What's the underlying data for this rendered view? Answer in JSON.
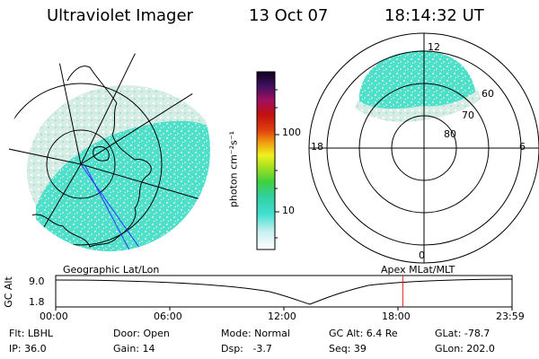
{
  "header": {
    "instrument": "Ultraviolet Imager",
    "date": "13 Oct 07",
    "time": "18:14:32 UT"
  },
  "colorbar": {
    "label": "photon cm⁻²s⁻¹",
    "ticks": [
      "100",
      "10"
    ]
  },
  "polar_plot": {
    "mlt_labels": [
      "12",
      "18",
      "6",
      "0"
    ],
    "lat_labels": [
      "60",
      "70",
      "80"
    ]
  },
  "timeline": {
    "left_title": "Geographic Lat/Lon",
    "right_title": "Apex  MLat/MLT",
    "axis_label": "GC Alt",
    "y_ticks": [
      "9.0",
      "1.8"
    ],
    "x_ticks": [
      "00:00",
      "06:00",
      "12:00",
      "18:00",
      "23:59"
    ],
    "marker_time": "18:14:32",
    "marker_color": "#e02020"
  },
  "status": {
    "flt": "Flt: LBHL",
    "ip": "IP: 36.0",
    "door": "Door: Open",
    "gain": "Gain: 14",
    "mode": "Mode: Normal",
    "dsp": "Dsp:   -3.7",
    "gcalt": "GC Alt: 6.4 Re",
    "seq": "Seq: 39",
    "glat": "GLat: -78.7",
    "glon": "GLon: 202.0"
  },
  "colors": {
    "aurora_fill": "#4fe0cc",
    "aurora_light": "#bfe8de",
    "grid_line": "#000000",
    "track_line": "#3030ff"
  }
}
